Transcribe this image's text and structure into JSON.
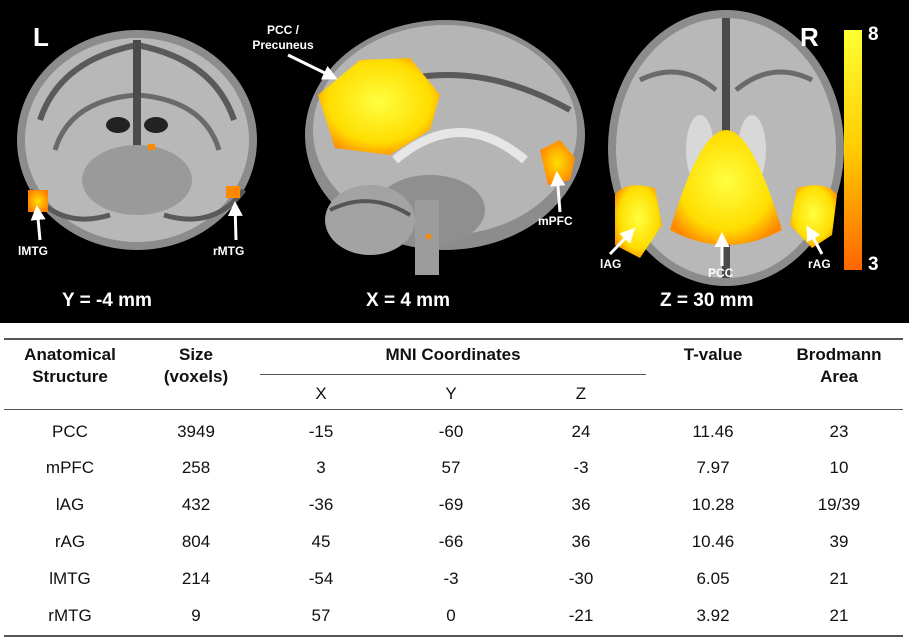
{
  "figure": {
    "hemisphere_left": "L",
    "hemisphere_right": "R",
    "coronal": {
      "coordinate": "Y = -4 mm",
      "labels": {
        "lmtg": "lMTG",
        "rmtg": "rMTG"
      }
    },
    "sagittal": {
      "coordinate": "X = 4 mm",
      "labels": {
        "pcc_line1": "PCC /",
        "pcc_line2": "Precuneus",
        "mpfc": "mPFC"
      }
    },
    "axial": {
      "coordinate": "Z = 30 mm",
      "labels": {
        "lag": "lAG",
        "pcc": "PCC",
        "rag": "rAG"
      }
    },
    "colorbar": {
      "max_label": "8",
      "min_label": "3",
      "top_color": "#ffff33",
      "bottom_color": "#ff6600"
    }
  },
  "table": {
    "headers": {
      "structure_line1": "Anatomical",
      "structure_line2": "Structure",
      "size_line1": "Size",
      "size_line2": "(voxels)",
      "mni": "MNI Coordinates",
      "x": "X",
      "y": "Y",
      "z": "Z",
      "tvalue": "T-value",
      "ba_line1": "Brodmann",
      "ba_line2": "Area"
    },
    "rows": [
      {
        "structure": "PCC",
        "size": "3949",
        "x": "-15",
        "y": "-60",
        "z": "24",
        "t": "11.46",
        "ba": "23"
      },
      {
        "structure": "mPFC",
        "size": "258",
        "x": "3",
        "y": "57",
        "z": "-3",
        "t": "7.97",
        "ba": "10"
      },
      {
        "structure": "lAG",
        "size": "432",
        "x": "-36",
        "y": "-69",
        "z": "36",
        "t": "10.28",
        "ba": "19/39"
      },
      {
        "structure": "rAG",
        "size": "804",
        "x": "45",
        "y": "-66",
        "z": "36",
        "t": "10.46",
        "ba": "39"
      },
      {
        "structure": "lMTG",
        "size": "214",
        "x": "-54",
        "y": "-3",
        "z": "-30",
        "t": "6.05",
        "ba": "21"
      },
      {
        "structure": "rMTG",
        "size": "9",
        "x": "57",
        "y": "0",
        "z": "-21",
        "t": "3.92",
        "ba": "21"
      }
    ]
  }
}
